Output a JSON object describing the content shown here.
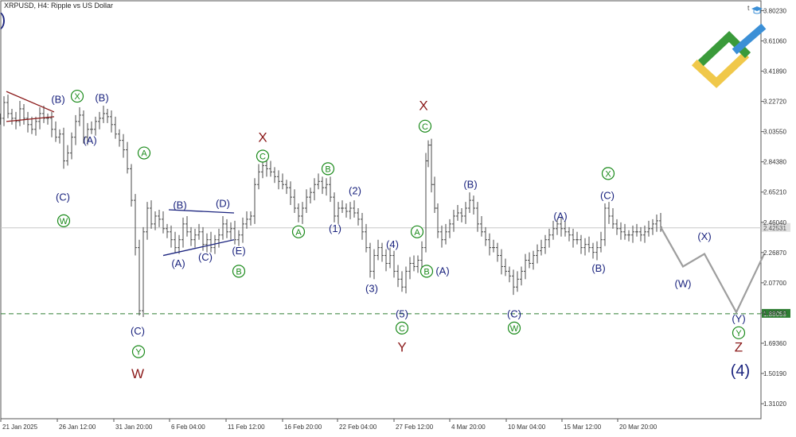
{
  "chart_data": {
    "type": "line",
    "title": "XRPUSD, H4:  Ripple vs US Dollar",
    "x_ticks": [
      "21 Jan 2025",
      "26 Jan 12:00",
      "31 Jan 20:00",
      "6 Feb 04:00",
      "11 Feb 12:00",
      "16 Feb 20:00",
      "22 Feb 04:00",
      "27 Feb 12:00",
      "4 Mar 20:00",
      "10 Mar 04:00",
      "15 Mar 12:00",
      "20 Mar 20:00"
    ],
    "y_ticks": [
      "3.80230",
      "3.61060",
      "3.41890",
      "3.22720",
      "3.03550",
      "2.84380",
      "2.65210",
      "2.46040",
      "2.26870",
      "2.07700",
      "1.88530",
      "1.69360",
      "1.50190",
      "1.31020"
    ],
    "ylim": [
      1.215,
      3.865
    ],
    "price_levels": [
      {
        "name": "current-price",
        "value": 2.4253,
        "label": "2.42531",
        "color": "#c8c8c8"
      },
      {
        "name": "support-level",
        "value": 1.8806,
        "label": "1.88059",
        "color": "#2e7d32"
      }
    ],
    "close_series": [
      {
        "x": 0,
        "y": 3.12
      },
      {
        "x": 5,
        "y": 3.22
      },
      {
        "x": 10,
        "y": 3.15
      },
      {
        "x": 15,
        "y": 3.12
      },
      {
        "x": 20,
        "y": 3.1
      },
      {
        "x": 25,
        "y": 3.18
      },
      {
        "x": 30,
        "y": 3.12
      },
      {
        "x": 35,
        "y": 3.08
      },
      {
        "x": 40,
        "y": 3.05
      },
      {
        "x": 45,
        "y": 3.1
      },
      {
        "x": 50,
        "y": 3.15
      },
      {
        "x": 55,
        "y": 3.12
      },
      {
        "x": 60,
        "y": 3.12
      },
      {
        "x": 65,
        "y": 3.05
      },
      {
        "x": 70,
        "y": 3.0
      },
      {
        "x": 75,
        "y": 3.02
      },
      {
        "x": 80,
        "y": 2.85
      },
      {
        "x": 85,
        "y": 2.9
      },
      {
        "x": 90,
        "y": 3.0
      },
      {
        "x": 95,
        "y": 3.1
      },
      {
        "x": 100,
        "y": 3.14
      },
      {
        "x": 105,
        "y": 3.0
      },
      {
        "x": 110,
        "y": 3.05
      },
      {
        "x": 115,
        "y": 3.05
      },
      {
        "x": 120,
        "y": 3.1
      },
      {
        "x": 125,
        "y": 3.12
      },
      {
        "x": 130,
        "y": 3.15
      },
      {
        "x": 135,
        "y": 3.13
      },
      {
        "x": 140,
        "y": 3.08
      },
      {
        "x": 145,
        "y": 3.02
      },
      {
        "x": 150,
        "y": 2.98
      },
      {
        "x": 155,
        "y": 2.92
      },
      {
        "x": 160,
        "y": 2.8
      },
      {
        "x": 165,
        "y": 2.6
      },
      {
        "x": 170,
        "y": 2.3
      },
      {
        "x": 175,
        "y": 1.9
      },
      {
        "x": 180,
        "y": 2.4
      },
      {
        "x": 185,
        "y": 2.55
      },
      {
        "x": 190,
        "y": 2.45
      },
      {
        "x": 195,
        "y": 2.5
      },
      {
        "x": 200,
        "y": 2.48
      },
      {
        "x": 205,
        "y": 2.42
      },
      {
        "x": 210,
        "y": 2.4
      },
      {
        "x": 215,
        "y": 2.35
      },
      {
        "x": 220,
        "y": 2.3
      },
      {
        "x": 225,
        "y": 2.35
      },
      {
        "x": 230,
        "y": 2.45
      },
      {
        "x": 235,
        "y": 2.4
      },
      {
        "x": 240,
        "y": 2.35
      },
      {
        "x": 245,
        "y": 2.38
      },
      {
        "x": 250,
        "y": 2.4
      },
      {
        "x": 255,
        "y": 2.32
      },
      {
        "x": 260,
        "y": 2.35
      },
      {
        "x": 265,
        "y": 2.3
      },
      {
        "x": 270,
        "y": 2.35
      },
      {
        "x": 275,
        "y": 2.38
      },
      {
        "x": 280,
        "y": 2.45
      },
      {
        "x": 285,
        "y": 2.4
      },
      {
        "x": 290,
        "y": 2.42
      },
      {
        "x": 295,
        "y": 2.35
      },
      {
        "x": 300,
        "y": 2.38
      },
      {
        "x": 305,
        "y": 2.45
      },
      {
        "x": 310,
        "y": 2.48
      },
      {
        "x": 315,
        "y": 2.5
      },
      {
        "x": 320,
        "y": 2.7
      },
      {
        "x": 325,
        "y": 2.78
      },
      {
        "x": 330,
        "y": 2.82
      },
      {
        "x": 335,
        "y": 2.8
      },
      {
        "x": 340,
        "y": 2.78
      },
      {
        "x": 345,
        "y": 2.75
      },
      {
        "x": 350,
        "y": 2.72
      },
      {
        "x": 355,
        "y": 2.7
      },
      {
        "x": 360,
        "y": 2.68
      },
      {
        "x": 365,
        "y": 2.62
      },
      {
        "x": 370,
        "y": 2.55
      },
      {
        "x": 375,
        "y": 2.5
      },
      {
        "x": 380,
        "y": 2.55
      },
      {
        "x": 385,
        "y": 2.62
      },
      {
        "x": 390,
        "y": 2.65
      },
      {
        "x": 395,
        "y": 2.7
      },
      {
        "x": 400,
        "y": 2.72
      },
      {
        "x": 405,
        "y": 2.68
      },
      {
        "x": 410,
        "y": 2.7
      },
      {
        "x": 415,
        "y": 2.62
      },
      {
        "x": 420,
        "y": 2.5
      },
      {
        "x": 425,
        "y": 2.55
      },
      {
        "x": 430,
        "y": 2.55
      },
      {
        "x": 435,
        "y": 2.53
      },
      {
        "x": 440,
        "y": 2.55
      },
      {
        "x": 445,
        "y": 2.52
      },
      {
        "x": 450,
        "y": 2.48
      },
      {
        "x": 455,
        "y": 2.4
      },
      {
        "x": 460,
        "y": 2.3
      },
      {
        "x": 465,
        "y": 2.15
      },
      {
        "x": 470,
        "y": 2.25
      },
      {
        "x": 475,
        "y": 2.3
      },
      {
        "x": 480,
        "y": 2.25
      },
      {
        "x": 485,
        "y": 2.2
      },
      {
        "x": 490,
        "y": 2.25
      },
      {
        "x": 495,
        "y": 2.15
      },
      {
        "x": 500,
        "y": 2.1
      },
      {
        "x": 505,
        "y": 2.05
      },
      {
        "x": 510,
        "y": 2.15
      },
      {
        "x": 515,
        "y": 2.2
      },
      {
        "x": 520,
        "y": 2.18
      },
      {
        "x": 525,
        "y": 2.22
      },
      {
        "x": 530,
        "y": 2.3
      },
      {
        "x": 535,
        "y": 2.85
      },
      {
        "x": 538,
        "y": 2.95
      },
      {
        "x": 542,
        "y": 2.7
      },
      {
        "x": 546,
        "y": 2.55
      },
      {
        "x": 550,
        "y": 2.4
      },
      {
        "x": 555,
        "y": 2.35
      },
      {
        "x": 560,
        "y": 2.4
      },
      {
        "x": 565,
        "y": 2.45
      },
      {
        "x": 570,
        "y": 2.5
      },
      {
        "x": 575,
        "y": 2.52
      },
      {
        "x": 580,
        "y": 2.5
      },
      {
        "x": 585,
        "y": 2.55
      },
      {
        "x": 590,
        "y": 2.6
      },
      {
        "x": 595,
        "y": 2.55
      },
      {
        "x": 600,
        "y": 2.45
      },
      {
        "x": 605,
        "y": 2.4
      },
      {
        "x": 610,
        "y": 2.35
      },
      {
        "x": 615,
        "y": 2.3
      },
      {
        "x": 620,
        "y": 2.3
      },
      {
        "x": 625,
        "y": 2.25
      },
      {
        "x": 630,
        "y": 2.18
      },
      {
        "x": 635,
        "y": 2.15
      },
      {
        "x": 640,
        "y": 2.12
      },
      {
        "x": 645,
        "y": 2.05
      },
      {
        "x": 650,
        "y": 2.1
      },
      {
        "x": 655,
        "y": 2.15
      },
      {
        "x": 660,
        "y": 2.22
      },
      {
        "x": 665,
        "y": 2.2
      },
      {
        "x": 670,
        "y": 2.25
      },
      {
        "x": 675,
        "y": 2.28
      },
      {
        "x": 680,
        "y": 2.3
      },
      {
        "x": 685,
        "y": 2.35
      },
      {
        "x": 690,
        "y": 2.38
      },
      {
        "x": 695,
        "y": 2.42
      },
      {
        "x": 700,
        "y": 2.45
      },
      {
        "x": 705,
        "y": 2.42
      },
      {
        "x": 710,
        "y": 2.4
      },
      {
        "x": 715,
        "y": 2.38
      },
      {
        "x": 720,
        "y": 2.35
      },
      {
        "x": 725,
        "y": 2.35
      },
      {
        "x": 730,
        "y": 2.3
      },
      {
        "x": 735,
        "y": 2.32
      },
      {
        "x": 740,
        "y": 2.3
      },
      {
        "x": 745,
        "y": 2.27
      },
      {
        "x": 750,
        "y": 2.3
      },
      {
        "x": 755,
        "y": 2.35
      },
      {
        "x": 760,
        "y": 2.55
      },
      {
        "x": 765,
        "y": 2.5
      },
      {
        "x": 770,
        "y": 2.45
      },
      {
        "x": 775,
        "y": 2.42
      },
      {
        "x": 780,
        "y": 2.4
      },
      {
        "x": 785,
        "y": 2.38
      },
      {
        "x": 790,
        "y": 2.38
      },
      {
        "x": 795,
        "y": 2.4
      },
      {
        "x": 800,
        "y": 2.4
      },
      {
        "x": 805,
        "y": 2.38
      },
      {
        "x": 810,
        "y": 2.4
      },
      {
        "x": 815,
        "y": 2.42
      },
      {
        "x": 820,
        "y": 2.45
      },
      {
        "x": 825,
        "y": 2.47
      },
      {
        "x": 830,
        "y": 2.43
      }
    ],
    "forecast_path": [
      {
        "x": 830,
        "y": 2.43
      },
      {
        "x": 858,
        "y": 2.18
      },
      {
        "x": 885,
        "y": 2.26
      },
      {
        "x": 925,
        "y": 1.89
      },
      {
        "x": 960,
        "y": 2.26
      }
    ],
    "trendlines": [
      {
        "name": "triangle-upper-line",
        "color": "#8b1a1a",
        "points": [
          {
            "x": 8,
            "y": 3.29
          },
          {
            "x": 68,
            "y": 3.16
          }
        ]
      },
      {
        "name": "triangle-lower-line",
        "color": "#8b1a1a",
        "points": [
          {
            "x": 8,
            "y": 3.1
          },
          {
            "x": 68,
            "y": 3.13
          }
        ]
      },
      {
        "name": "triangle-b-d-line",
        "color": "#1a237e",
        "points": [
          {
            "x": 212,
            "y": 2.54
          },
          {
            "x": 294,
            "y": 2.52
          }
        ]
      },
      {
        "name": "triangle-a-c-line",
        "color": "#1a237e",
        "points": [
          {
            "x": 205,
            "y": 2.25
          },
          {
            "x": 294,
            "y": 2.35
          }
        ]
      }
    ],
    "wave_labels": [
      {
        "name": "wave-b-1",
        "text": "(B)",
        "x": 73,
        "y": 3.24,
        "style": "navy"
      },
      {
        "name": "wave-a-1",
        "text": "(A)",
        "x": 113,
        "y": 2.98,
        "style": "navy"
      },
      {
        "name": "wave-b-2",
        "text": "(B)",
        "x": 128,
        "y": 3.25,
        "style": "navy"
      },
      {
        "name": "wave-c-1",
        "text": "(C)",
        "x": 79,
        "y": 2.62,
        "style": "navy"
      },
      {
        "name": "wave-c-2",
        "text": "(C)",
        "x": 173,
        "y": 1.77,
        "style": "navy"
      },
      {
        "name": "wave-b-3",
        "text": "(B)",
        "x": 226,
        "y": 2.57,
        "style": "navy"
      },
      {
        "name": "wave-d-1",
        "text": "(D)",
        "x": 280,
        "y": 2.58,
        "style": "navy"
      },
      {
        "name": "wave-a-2",
        "text": "(A)",
        "x": 224,
        "y": 2.2,
        "style": "navy"
      },
      {
        "name": "wave-c-3",
        "text": "(C)",
        "x": 258,
        "y": 2.24,
        "style": "navy"
      },
      {
        "name": "wave-e-1",
        "text": "(E)",
        "x": 300,
        "y": 2.28,
        "style": "navy"
      },
      {
        "name": "wave-2-1",
        "text": "(2)",
        "x": 446,
        "y": 2.66,
        "style": "navy"
      },
      {
        "name": "wave-1-1",
        "text": "(1)",
        "x": 421,
        "y": 2.42,
        "style": "navy"
      },
      {
        "name": "wave-4-1",
        "text": "(4)",
        "x": 493,
        "y": 2.32,
        "style": "navy"
      },
      {
        "name": "wave-3-1",
        "text": "(3)",
        "x": 467,
        "y": 2.04,
        "style": "navy"
      },
      {
        "name": "wave-5-1",
        "text": "(5)",
        "x": 505,
        "y": 1.88,
        "style": "navy"
      },
      {
        "name": "wave-a-3",
        "text": "(A)",
        "x": 556,
        "y": 2.15,
        "style": "navy"
      },
      {
        "name": "wave-b-4",
        "text": "(B)",
        "x": 591,
        "y": 2.7,
        "style": "navy"
      },
      {
        "name": "wave-c-4",
        "text": "(C)",
        "x": 646,
        "y": 1.88,
        "style": "navy"
      },
      {
        "name": "wave-a-4",
        "text": "(A)",
        "x": 704,
        "y": 2.5,
        "style": "navy"
      },
      {
        "name": "wave-b-5",
        "text": "(B)",
        "x": 752,
        "y": 2.17,
        "style": "navy"
      },
      {
        "name": "wave-c-5",
        "text": "(C)",
        "x": 763,
        "y": 2.63,
        "style": "navy"
      },
      {
        "name": "wave-x-2",
        "text": "(X)",
        "x": 885,
        "y": 2.37,
        "style": "navy"
      },
      {
        "name": "wave-w-2",
        "text": "(W)",
        "x": 858,
        "y": 2.07,
        "style": "navy"
      },
      {
        "name": "wave-y-2",
        "text": "(Y)",
        "x": 928,
        "y": 1.85,
        "style": "navy"
      },
      {
        "name": "wave-4-big",
        "text": "(4)",
        "x": 930,
        "y": 1.52,
        "style": "navy-big"
      },
      {
        "name": "wave-cap-x-1",
        "text": "X",
        "x": 330,
        "y": 3.0,
        "style": "darkred"
      },
      {
        "name": "wave-cap-x-2",
        "text": "X",
        "x": 532,
        "y": 3.2,
        "style": "darkred"
      },
      {
        "name": "wave-cap-w",
        "text": "W",
        "x": 173,
        "y": 1.5,
        "style": "darkred"
      },
      {
        "name": "wave-cap-y",
        "text": "Y",
        "x": 505,
        "y": 1.67,
        "style": "darkred"
      },
      {
        "name": "wave-cap-z",
        "text": "Z",
        "x": 928,
        "y": 1.67,
        "style": "darkred"
      },
      {
        "name": "wave-circ-x-1",
        "text": "X",
        "x": 97,
        "y": 3.26,
        "style": "circle"
      },
      {
        "name": "wave-circ-w-1",
        "text": "W",
        "x": 80,
        "y": 2.47,
        "style": "circle"
      },
      {
        "name": "wave-circ-y-1",
        "text": "Y",
        "x": 174,
        "y": 1.64,
        "style": "circle"
      },
      {
        "name": "wave-circ-a-1",
        "text": "A",
        "x": 181,
        "y": 2.9,
        "style": "circle"
      },
      {
        "name": "wave-circ-c-1",
        "text": "C",
        "x": 330,
        "y": 2.88,
        "style": "circle"
      },
      {
        "name": "wave-circ-b-1",
        "text": "B",
        "x": 412,
        "y": 2.8,
        "style": "circle"
      },
      {
        "name": "wave-circ-a-2",
        "text": "A",
        "x": 375,
        "y": 2.4,
        "style": "circle"
      },
      {
        "name": "wave-circ-b-2",
        "text": "B",
        "x": 300,
        "y": 2.15,
        "style": "circle"
      },
      {
        "name": "wave-circ-c-2",
        "text": "C",
        "x": 534,
        "y": 3.07,
        "style": "circle"
      },
      {
        "name": "wave-circ-a-3",
        "text": "A",
        "x": 524,
        "y": 2.4,
        "style": "circle"
      },
      {
        "name": "wave-circ-b-3",
        "text": "B",
        "x": 536,
        "y": 2.15,
        "style": "circle"
      },
      {
        "name": "wave-circ-c-3",
        "text": "C",
        "x": 505,
        "y": 1.79,
        "style": "circle"
      },
      {
        "name": "wave-circ-w-2",
        "text": "W",
        "x": 646,
        "y": 1.79,
        "style": "circle"
      },
      {
        "name": "wave-circ-x-2",
        "text": "X",
        "x": 764,
        "y": 2.77,
        "style": "circle"
      },
      {
        "name": "wave-circ-y-2",
        "text": "Y",
        "x": 928,
        "y": 1.76,
        "style": "circle"
      }
    ],
    "colors": {
      "price_bars": "#4a4a4a",
      "forecast": "#9e9e9e",
      "navy": "#1a237e",
      "darkred": "#8b1a1a",
      "circle_green": "#1a8a1a",
      "axis": "#555555",
      "logo_green": "#3a9a3a",
      "logo_blue": "#3b8fd6",
      "logo_yellow": "#f0c84a"
    },
    "logo": "brand-logo-icon",
    "corner_glyph": "t"
  }
}
